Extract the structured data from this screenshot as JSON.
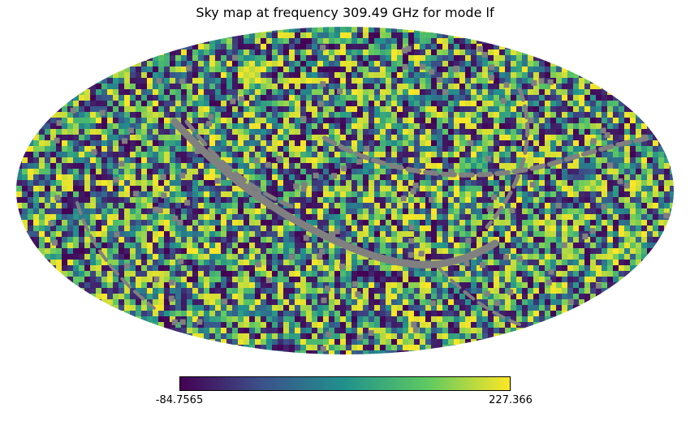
{
  "chart_data": {
    "type": "heatmap",
    "projection": "mollweide",
    "title": "Sky map at frequency 309.49 GHz for mode lf",
    "colormap": "viridis",
    "colormap_stops": [
      "#440154",
      "#3b528b",
      "#21918c",
      "#5ec962",
      "#fde725"
    ],
    "masked_color": "#808080",
    "colorbar": {
      "orientation": "horizontal",
      "min": -84.7565,
      "max": 227.366,
      "min_label": "-84.7565",
      "max_label": "227.366"
    },
    "grid": false
  }
}
